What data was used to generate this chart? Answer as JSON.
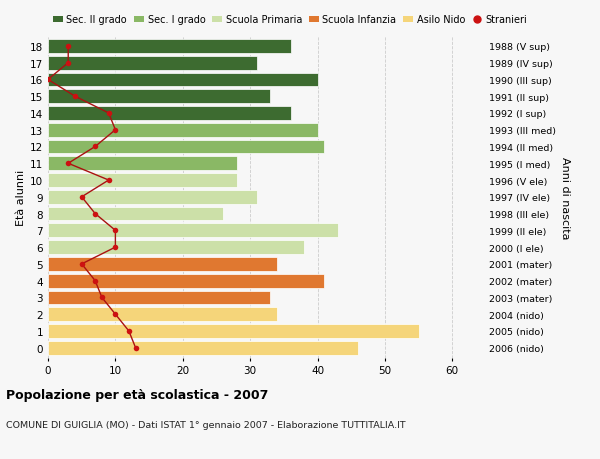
{
  "ages": [
    0,
    1,
    2,
    3,
    4,
    5,
    6,
    7,
    8,
    9,
    10,
    11,
    12,
    13,
    14,
    15,
    16,
    17,
    18
  ],
  "bar_values": [
    46,
    55,
    34,
    33,
    41,
    34,
    38,
    43,
    26,
    31,
    28,
    28,
    41,
    40,
    36,
    33,
    40,
    31,
    36
  ],
  "bar_colors": [
    "#f5d57a",
    "#f5d57a",
    "#f5d57a",
    "#e07830",
    "#e07830",
    "#e07830",
    "#cce0a8",
    "#cce0a8",
    "#cce0a8",
    "#cce0a8",
    "#cce0a8",
    "#8ab865",
    "#8ab865",
    "#8ab865",
    "#3d6b30",
    "#3d6b30",
    "#3d6b30",
    "#3d6b30",
    "#3d6b30"
  ],
  "stranieri_values": [
    13,
    12,
    10,
    8,
    7,
    5,
    10,
    10,
    7,
    5,
    9,
    3,
    7,
    10,
    9,
    4,
    0,
    3,
    3
  ],
  "right_labels": [
    "2006 (nido)",
    "2005 (nido)",
    "2004 (nido)",
    "2003 (mater)",
    "2002 (mater)",
    "2001 (mater)",
    "2000 (I ele)",
    "1999 (II ele)",
    "1998 (III ele)",
    "1997 (IV ele)",
    "1996 (V ele)",
    "1995 (I med)",
    "1994 (II med)",
    "1993 (III med)",
    "1992 (I sup)",
    "1991 (II sup)",
    "1990 (III sup)",
    "1989 (IV sup)",
    "1988 (V sup)"
  ],
  "ylabel_left": "Età alunni",
  "ylabel_right": "Anni di nascita",
  "xlim": [
    0,
    65
  ],
  "xticks": [
    0,
    10,
    20,
    30,
    40,
    50,
    60
  ],
  "title": "Popolazione per età scolastica - 2007",
  "subtitle": "COMUNE DI GUIGLIA (MO) - Dati ISTAT 1° gennaio 2007 - Elaborazione TUTTITALIA.IT",
  "legend_labels": [
    "Sec. II grado",
    "Sec. I grado",
    "Scuola Primaria",
    "Scuola Infanzia",
    "Asilo Nido",
    "Stranieri"
  ],
  "legend_colors": [
    "#3d6b30",
    "#8ab865",
    "#cce0a8",
    "#e07830",
    "#f5d57a",
    "#cc1111"
  ],
  "stranieri_line_color": "#aa1111",
  "stranieri_dot_color": "#cc1111",
  "bg_color": "#f7f7f7",
  "grid_color": "#cccccc",
  "bar_edge_color": "#ffffff"
}
